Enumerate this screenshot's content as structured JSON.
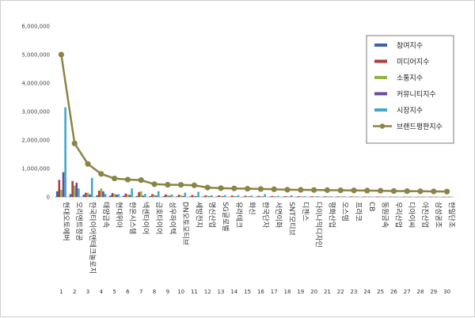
{
  "chart_data": {
    "type": "bar",
    "title": "",
    "xlabel": "",
    "ylabel": "",
    "ylim": [
      0,
      6000000
    ],
    "yticks": [
      "0",
      "1,000,000",
      "2,000,000",
      "3,000,000",
      "4,000,000",
      "5,000,000",
      "6,000,000"
    ],
    "yticks_values": [
      0,
      1000000,
      2000000,
      3000000,
      4000000,
      5000000,
      6000000
    ],
    "grid": false,
    "legend_position": "top-right",
    "categories": [
      "현대오토에버",
      "오리엔트정공",
      "한국타이어앤테크놀로지",
      "태양금속",
      "현대위아",
      "한온시스템",
      "넥센타이어",
      "금호타이어",
      "성우하이텍",
      "DN오토모티브",
      "세방전지",
      "명신산업",
      "SG글로벌",
      "유라테크",
      "화신",
      "한국단자",
      "서연이화",
      "SNT모티브",
      "디젠스",
      "다이나믹디자인",
      "평화산업",
      "오스템",
      "프라코",
      "CB",
      "동원금속",
      "우리산업",
      "디아이씨",
      "아진산업",
      "삼성공조",
      "한일단조"
    ],
    "indices": [
      "1",
      "2",
      "3",
      "4",
      "5",
      "6",
      "7",
      "8",
      "9",
      "10",
      "11",
      "12",
      "13",
      "14",
      "15",
      "16",
      "17",
      "18",
      "19",
      "20",
      "21",
      "22",
      "23",
      "24",
      "25",
      "26",
      "27",
      "28",
      "29",
      "30"
    ],
    "series": [
      {
        "name": "참여지수",
        "color": "#3c62aa",
        "values": [
          200000,
          100000,
          80000,
          60000,
          50000,
          40000,
          35000,
          30000,
          25000,
          22000,
          20000,
          18000,
          16000,
          14000,
          13000,
          12000,
          11000,
          10000,
          9000,
          8500,
          8000,
          7500,
          7000,
          6500,
          6000,
          5500,
          5000,
          4500,
          4000,
          3500
        ]
      },
      {
        "name": "미디어지수",
        "color": "#b33a3a",
        "values": [
          600000,
          560000,
          150000,
          220000,
          140000,
          120000,
          170000,
          100000,
          90000,
          80000,
          70000,
          60000,
          55000,
          50000,
          45000,
          40000,
          35000,
          30000,
          28000,
          26000,
          24000,
          22000,
          20000,
          18000,
          16000,
          14000,
          12000,
          10000,
          9000,
          8000
        ]
      },
      {
        "name": "소통지수",
        "color": "#93b548",
        "values": [
          250000,
          400000,
          150000,
          300000,
          110000,
          90000,
          200000,
          80000,
          70000,
          60000,
          50000,
          45000,
          40000,
          35000,
          30000,
          28000,
          26000,
          24000,
          22000,
          20000,
          18000,
          16000,
          14000,
          12000,
          10000,
          9000,
          8000,
          7000,
          6000,
          5000
        ]
      },
      {
        "name": "커뮤니티지수",
        "color": "#6e4a9a",
        "values": [
          870000,
          500000,
          90000,
          200000,
          80000,
          70000,
          50000,
          45000,
          40000,
          35000,
          30000,
          28000,
          25000,
          22000,
          20000,
          18000,
          16000,
          14000,
          12000,
          11000,
          10000,
          9000,
          8000,
          7000,
          6000,
          5500,
          5000,
          4500,
          4000,
          3500
        ]
      },
      {
        "name": "시장지수",
        "color": "#41a8c9",
        "values": [
          3150000,
          300000,
          670000,
          110000,
          100000,
          300000,
          110000,
          200000,
          90000,
          150000,
          180000,
          60000,
          70000,
          60000,
          50000,
          100000,
          40000,
          60000,
          30000,
          25000,
          22000,
          20000,
          18000,
          15000,
          12000,
          10000,
          9000,
          8000,
          7000,
          6000
        ]
      },
      {
        "name": "브랜드평판지수",
        "color": "#8a8445",
        "type": "line",
        "values": [
          5000000,
          1880000,
          1160000,
          810000,
          650000,
          610000,
          590000,
          450000,
          430000,
          425000,
          410000,
          330000,
          310000,
          300000,
          290000,
          280000,
          270000,
          255000,
          250000,
          245000,
          240000,
          235000,
          230000,
          225000,
          220000,
          210000,
          205000,
          200000,
          195000,
          190000
        ]
      }
    ]
  }
}
